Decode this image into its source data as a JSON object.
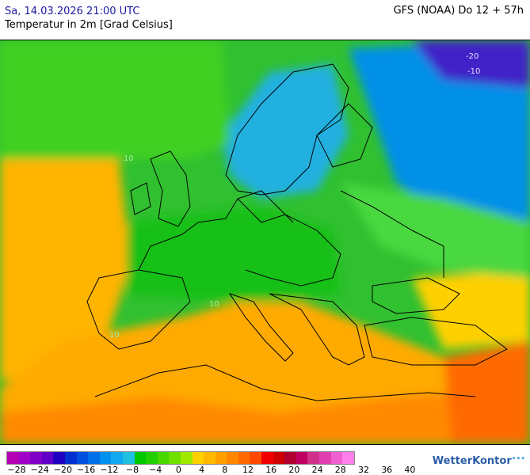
{
  "header": {
    "date": "Sa, 14.03.2026 21:00 UTC",
    "subtitle": "Temperatur in 2m [Grad Celsius]",
    "model": "GFS (NOAA) Do 12 + 57h"
  },
  "legend": {
    "colors": [
      "#b400b4",
      "#a000c8",
      "#8000c8",
      "#6000c8",
      "#2000c0",
      "#0030d0",
      "#0050e0",
      "#0070e8",
      "#0090f0",
      "#10a8f0",
      "#20c0e0",
      "#00c800",
      "#20d000",
      "#48d800",
      "#70e000",
      "#a0e800",
      "#ffd000",
      "#ffb800",
      "#ffa000",
      "#ff8800",
      "#ff6a00",
      "#ff4800",
      "#f00000",
      "#d00000",
      "#b00030",
      "#c00060",
      "#d0308a",
      "#e040b0",
      "#f060d0",
      "#ff80e8"
    ],
    "labels": [
      "−28",
      "−24",
      "−20",
      "−16",
      "−12",
      "−8",
      "−4",
      "0",
      "4",
      "8",
      "12",
      "16",
      "20",
      "24",
      "28",
      "32",
      "36",
      "40"
    ]
  },
  "brand": {
    "name": "WetterKontor",
    "mark": "•••"
  },
  "map_labels": {
    "isotherm_neg20": "-20",
    "isotherm_neg10": "-10",
    "isotherm_10a": "10",
    "isotherm_10b": "10",
    "isotherm_10c": "10"
  }
}
